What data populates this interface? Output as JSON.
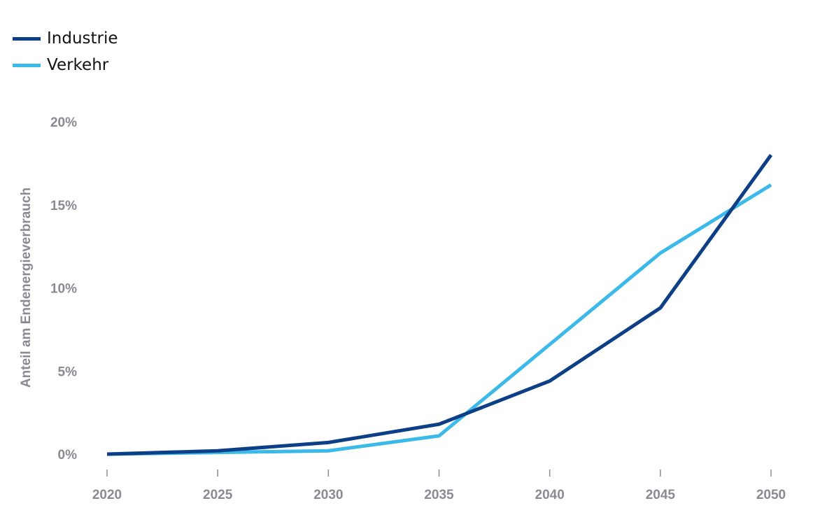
{
  "chart_data": {
    "type": "line",
    "title": "",
    "xlabel": "",
    "ylabel": "Anteil am Endenergieverbrauch",
    "x": [
      2020,
      2025,
      2030,
      2035,
      2040,
      2045,
      2050
    ],
    "x_tick_labels": [
      "2020",
      "2025",
      "2030",
      "2035",
      "2040",
      "2045",
      "2050"
    ],
    "y_ticks": [
      0,
      5,
      10,
      15,
      20
    ],
    "y_tick_labels": [
      "0%",
      "5%",
      "10%",
      "15%",
      "20%"
    ],
    "ylim": [
      0,
      20
    ],
    "grid": false,
    "legend_position": "top-left",
    "series": [
      {
        "name": "Industrie",
        "color": "#0d3f86",
        "values": [
          0,
          0.2,
          0.7,
          1.8,
          4.4,
          8.8,
          18.0
        ]
      },
      {
        "name": "Verkehr",
        "color": "#3bb9e8",
        "values": [
          0,
          0.1,
          0.2,
          1.1,
          6.6,
          12.1,
          16.2
        ]
      }
    ]
  }
}
